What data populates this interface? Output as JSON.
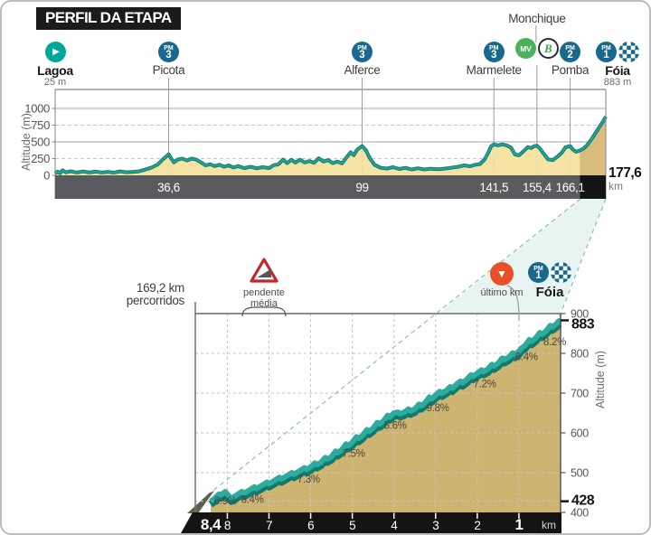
{
  "header": {
    "title": "PERFIL DA ETAPA"
  },
  "top_profile": {
    "axis_label": "Altitude (m)",
    "total_distance": "177,6",
    "total_unit": "km",
    "waypoints": [
      {
        "name": "Lagoa",
        "elevation": "25 m",
        "km": 0,
        "bold": true,
        "badges": [
          {
            "type": "start"
          }
        ]
      },
      {
        "name": "Picota",
        "km": 36.6,
        "badges": [
          {
            "type": "pm",
            "label": "PM",
            "num": "3"
          }
        ]
      },
      {
        "name": "Alferce",
        "km": 99,
        "badges": [
          {
            "type": "pm",
            "label": "PM",
            "num": "3"
          }
        ]
      },
      {
        "name": "Marmelete",
        "km": 141.5,
        "badges": [
          {
            "type": "pm",
            "label": "PM",
            "num": "3"
          }
        ]
      },
      {
        "name": "Monchique",
        "km": 155.4,
        "name_above": true,
        "badges": [
          {
            "type": "mv",
            "label": "MV"
          },
          {
            "type": "b",
            "label": "B"
          }
        ]
      },
      {
        "name": "Pomba",
        "km": 166.1,
        "badges": [
          {
            "type": "pm",
            "label": "PM",
            "num": "2"
          }
        ]
      },
      {
        "name": "Fóia",
        "elevation": "883 m",
        "km": 177.6,
        "bold": true,
        "dx": 13,
        "badges": [
          {
            "type": "pm",
            "label": "PM",
            "num": "1"
          },
          {
            "type": "finish"
          }
        ]
      }
    ]
  },
  "zoom_profile": {
    "axis_label": "Altitude (m)",
    "covered_line1": "169,2 km",
    "covered_line2": "percorridos",
    "slope_label_line1": "pendente",
    "slope_label_line2": "média",
    "last_km_label": "último km",
    "finish": {
      "name": "Fóia",
      "badges": [
        {
          "type": "pm",
          "label": "PM",
          "num": "1"
        },
        {
          "type": "finish"
        }
      ]
    }
  },
  "chart_data": [
    {
      "type": "area",
      "name": "full-stage-profile",
      "xlabel": "km",
      "ylabel": "Altitude (m)",
      "xlim": [
        0,
        177.6
      ],
      "ylim": [
        0,
        1150
      ],
      "yticks": [
        0,
        250,
        500,
        750,
        1000
      ],
      "solid_yticks": [
        500,
        1000
      ],
      "km_marks": [
        36.6,
        99,
        141.5,
        155.4,
        166.1
      ],
      "km_mark_labels": [
        "36,6",
        "99",
        "141,5",
        "155,4",
        "166,1"
      ],
      "final_highlight_from_km": 169.2,
      "profile": [
        [
          0,
          25
        ],
        [
          0.8,
          55
        ],
        [
          1.6,
          30
        ],
        [
          2.4,
          75
        ],
        [
          3.5,
          45
        ],
        [
          5,
          62
        ],
        [
          7,
          42
        ],
        [
          9,
          58
        ],
        [
          11,
          42
        ],
        [
          13,
          55
        ],
        [
          15,
          42
        ],
        [
          17,
          52
        ],
        [
          19,
          40
        ],
        [
          21,
          60
        ],
        [
          23,
          46
        ],
        [
          25,
          52
        ],
        [
          27,
          60
        ],
        [
          29,
          85
        ],
        [
          31,
          115
        ],
        [
          33,
          160
        ],
        [
          34.8,
          240
        ],
        [
          36.6,
          315
        ],
        [
          37.4,
          255
        ],
        [
          38.3,
          195
        ],
        [
          39.5,
          235
        ],
        [
          41,
          252
        ],
        [
          42.5,
          222
        ],
        [
          44,
          250
        ],
        [
          45.5,
          235
        ],
        [
          47,
          195
        ],
        [
          48.5,
          150
        ],
        [
          50,
          165
        ],
        [
          51.5,
          138
        ],
        [
          53,
          158
        ],
        [
          54.5,
          128
        ],
        [
          56,
          148
        ],
        [
          57.5,
          118
        ],
        [
          59,
          138
        ],
        [
          61,
          108
        ],
        [
          63,
          128
        ],
        [
          65,
          105
        ],
        [
          67,
          122
        ],
        [
          69,
          108
        ],
        [
          70.5,
          152
        ],
        [
          72,
          165
        ],
        [
          73.5,
          235
        ],
        [
          74.8,
          182
        ],
        [
          76.2,
          232
        ],
        [
          77.5,
          192
        ],
        [
          79,
          232
        ],
        [
          80.5,
          192
        ],
        [
          82,
          215
        ],
        [
          83.5,
          188
        ],
        [
          85,
          255
        ],
        [
          86.5,
          205
        ],
        [
          88,
          228
        ],
        [
          89.5,
          182
        ],
        [
          91,
          205
        ],
        [
          92.5,
          178
        ],
        [
          94,
          268
        ],
        [
          95.3,
          345
        ],
        [
          96.3,
          302
        ],
        [
          97.4,
          382
        ],
        [
          99,
          438
        ],
        [
          100.3,
          372
        ],
        [
          101.5,
          255
        ],
        [
          103,
          158
        ],
        [
          105,
          112
        ],
        [
          107,
          102
        ],
        [
          109,
          122
        ],
        [
          111,
          95
        ],
        [
          113,
          112
        ],
        [
          115,
          88
        ],
        [
          117,
          105
        ],
        [
          119,
          88
        ],
        [
          121,
          98
        ],
        [
          124,
          92
        ],
        [
          127,
          108
        ],
        [
          130,
          128
        ],
        [
          132,
          148
        ],
        [
          133.8,
          135
        ],
        [
          135.5,
          158
        ],
        [
          137,
          168
        ],
        [
          138.5,
          235
        ],
        [
          139.6,
          330
        ],
        [
          140.6,
          432
        ],
        [
          141.5,
          462
        ],
        [
          142.8,
          448
        ],
        [
          144.2,
          462
        ],
        [
          145.6,
          448
        ],
        [
          147,
          415
        ],
        [
          148.3,
          312
        ],
        [
          149.6,
          298
        ],
        [
          151,
          358
        ],
        [
          152.4,
          422
        ],
        [
          153.6,
          408
        ],
        [
          154.6,
          438
        ],
        [
          155.4,
          442
        ],
        [
          156.4,
          398
        ],
        [
          157.6,
          322
        ],
        [
          159,
          238
        ],
        [
          160.5,
          228
        ],
        [
          162,
          278
        ],
        [
          163.4,
          338
        ],
        [
          164.6,
          418
        ],
        [
          166.1,
          438
        ],
        [
          167,
          385
        ],
        [
          168,
          352
        ],
        [
          169.2,
          372
        ],
        [
          170.4,
          398
        ],
        [
          171.6,
          452
        ],
        [
          173,
          540
        ],
        [
          174.4,
          640
        ],
        [
          175.8,
          742
        ],
        [
          176.8,
          812
        ],
        [
          177.6,
          878
        ]
      ]
    },
    {
      "type": "area",
      "name": "final-climb-profile",
      "ylabel": "Altitude (m)",
      "ylim": [
        400,
        920
      ],
      "yticks": [
        400,
        500,
        600,
        700,
        800,
        900
      ],
      "bold_yticks": [
        428,
        883
      ],
      "x_unit": "km",
      "x_ticks": [
        {
          "km": 8.4,
          "label": "8,4",
          "big": true
        },
        {
          "km": 8,
          "label": "8"
        },
        {
          "km": 7,
          "label": "7"
        },
        {
          "km": 6,
          "label": "6"
        },
        {
          "km": 5,
          "label": "5"
        },
        {
          "km": 4,
          "label": "4"
        },
        {
          "km": 3,
          "label": "3"
        },
        {
          "km": 2,
          "label": "2"
        },
        {
          "km": 1,
          "label": "1",
          "big": true
        }
      ],
      "gradients": [
        {
          "label": "6.9%",
          "km": 8.05,
          "dy": 8
        },
        {
          "label": "8.4%",
          "km": 7.4,
          "dy": 10
        },
        {
          "label": "7.3%",
          "km": 6.05,
          "dy": 10
        },
        {
          "label": "7.5%",
          "km": 4.97,
          "dy": 12
        },
        {
          "label": "5.6%",
          "km": 3.97,
          "dy": 12
        },
        {
          "label": "9.8%",
          "km": 2.95,
          "dy": 14
        },
        {
          "label": "7.2%",
          "km": 1.82,
          "dy": 12
        },
        {
          "label": "6.4%",
          "km": 0.82,
          "dy": 12
        },
        {
          "label": "8.2%",
          "km": 0.14,
          "dy": 16
        }
      ],
      "profile": [
        [
          0,
          883
        ],
        [
          0.05,
          881
        ],
        [
          0.1,
          874
        ],
        [
          0.2,
          866
        ],
        [
          0.25,
          870
        ],
        [
          0.35,
          856
        ],
        [
          0.45,
          848
        ],
        [
          0.5,
          852
        ],
        [
          0.6,
          838
        ],
        [
          0.7,
          830
        ],
        [
          0.75,
          834
        ],
        [
          0.85,
          820
        ],
        [
          0.95,
          812
        ],
        [
          1.0,
          805
        ],
        [
          1.1,
          797
        ],
        [
          1.15,
          801
        ],
        [
          1.25,
          790
        ],
        [
          1.35,
          784
        ],
        [
          1.4,
          788
        ],
        [
          1.5,
          775
        ],
        [
          1.6,
          768
        ],
        [
          1.65,
          772
        ],
        [
          1.75,
          760
        ],
        [
          1.85,
          754
        ],
        [
          1.9,
          758
        ],
        [
          2.0,
          750
        ],
        [
          2.1,
          742
        ],
        [
          2.15,
          746
        ],
        [
          2.25,
          734
        ],
        [
          2.35,
          726
        ],
        [
          2.4,
          730
        ],
        [
          2.5,
          722
        ],
        [
          2.6,
          712
        ],
        [
          2.65,
          716
        ],
        [
          2.75,
          706
        ],
        [
          2.85,
          700
        ],
        [
          2.9,
          704
        ],
        [
          3.0,
          695
        ],
        [
          3.1,
          685
        ],
        [
          3.15,
          690
        ],
        [
          3.25,
          676
        ],
        [
          3.35,
          668
        ],
        [
          3.4,
          672
        ],
        [
          3.5,
          660
        ],
        [
          3.6,
          655
        ],
        [
          3.65,
          660
        ],
        [
          3.75,
          652
        ],
        [
          3.85,
          648
        ],
        [
          3.9,
          652
        ],
        [
          4.0,
          650
        ],
        [
          4.1,
          640
        ],
        [
          4.15,
          644
        ],
        [
          4.25,
          630
        ],
        [
          4.35,
          622
        ],
        [
          4.4,
          626
        ],
        [
          4.5,
          612
        ],
        [
          4.6,
          604
        ],
        [
          4.65,
          608
        ],
        [
          4.75,
          594
        ],
        [
          4.85,
          586
        ],
        [
          4.9,
          590
        ],
        [
          5.0,
          576
        ],
        [
          5.1,
          568
        ],
        [
          5.15,
          572
        ],
        [
          5.25,
          558
        ],
        [
          5.35,
          550
        ],
        [
          5.4,
          554
        ],
        [
          5.5,
          540
        ],
        [
          5.6,
          534
        ],
        [
          5.65,
          538
        ],
        [
          5.75,
          526
        ],
        [
          5.85,
          520
        ],
        [
          5.9,
          524
        ],
        [
          6.0,
          514
        ],
        [
          6.1,
          508
        ],
        [
          6.15,
          512
        ],
        [
          6.3,
          502
        ],
        [
          6.4,
          496
        ],
        [
          6.45,
          500
        ],
        [
          6.6,
          490
        ],
        [
          6.7,
          484
        ],
        [
          6.75,
          488
        ],
        [
          6.9,
          478
        ],
        [
          7.0,
          472
        ],
        [
          7.05,
          476
        ],
        [
          7.2,
          466
        ],
        [
          7.3,
          460
        ],
        [
          7.35,
          464
        ],
        [
          7.5,
          454
        ],
        [
          7.6,
          448
        ],
        [
          7.65,
          452
        ],
        [
          7.8,
          442
        ],
        [
          7.9,
          436
        ],
        [
          7.95,
          440
        ],
        [
          8.05,
          452
        ],
        [
          8.1,
          448
        ],
        [
          8.15,
          444
        ],
        [
          8.2,
          446
        ],
        [
          8.3,
          436
        ],
        [
          8.4,
          428
        ]
      ]
    }
  ],
  "colors": {
    "teal_line": "#22a294",
    "teal_dark": "#0f7568",
    "fill_light": "#f6e2a2",
    "fill_highlight": "#d9bd7f",
    "fill_zoom": "#cdb470",
    "band_light": "#2dab9c",
    "band_dark": "#117a6e",
    "bar_gray": "#5a5b5e",
    "bar_black": "#141414",
    "badge_blue": "#19688e",
    "badge_teal": "#00a79b",
    "badge_green": "#4cb25a",
    "badge_red": "#e8502a",
    "cone_fill": "#e2f1ee"
  }
}
